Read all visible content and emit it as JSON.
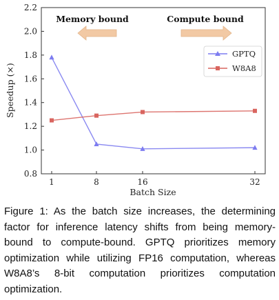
{
  "chart_data": {
    "type": "line",
    "x": [
      1,
      8,
      16,
      32
    ],
    "xticks": [
      "1",
      "8",
      "16",
      "32"
    ],
    "yticks": [
      "0.8",
      "1.0",
      "1.2",
      "1.4",
      "1.6",
      "1.8",
      "2.0",
      "2.2"
    ],
    "ylim": [
      0.8,
      2.2
    ],
    "xlabel": "Batch Size",
    "ylabel": "Speedup (×)",
    "grid": false,
    "legend_position": "upper-right",
    "series": [
      {
        "name": "GPTQ",
        "marker": "triangle",
        "color": "#7d7cf0",
        "values": [
          1.78,
          1.05,
          1.01,
          1.02
        ]
      },
      {
        "name": "W8A8",
        "marker": "square",
        "color": "#d9655f",
        "values": [
          1.25,
          1.29,
          1.32,
          1.33
        ]
      }
    ],
    "annotations": [
      {
        "text": "Memory bound",
        "arrow": "left",
        "color": "#f2c9a4"
      },
      {
        "text": "Compute bound",
        "arrow": "right",
        "color": "#f2c9a4"
      }
    ]
  },
  "caption": "Figure 1: As the batch size increases, the deter­mining factor for inference latency shifts from be­ing memory-bound to compute-bound. GPTQ pri­oritizes memory optimization while utilizing FP16 computation, whereas W8A8’s 8-bit computation prioritizes computation optimization."
}
